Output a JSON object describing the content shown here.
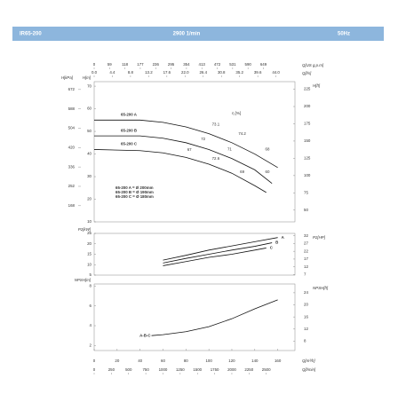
{
  "header": {
    "model": "IR65-200",
    "speed": "2900 1/min",
    "frequency": "50Hz"
  },
  "chart_data": [
    {
      "type": "line",
      "xlim": [
        0,
        175
      ],
      "top_axes": [
        {
          "label": "Q[US g.p.m]",
          "lim": [
            0,
            770
          ],
          "ticks": [
            0,
            59,
            118,
            177,
            236,
            295,
            354,
            413,
            472,
            531,
            590,
            649
          ]
        },
        {
          "label": "Q[l/s]",
          "lim": [
            0,
            48.6
          ],
          "ticks": [
            {
              "value": 0,
              "label": "0.0"
            },
            4.4,
            8.8,
            13.2,
            17.6,
            {
              "value": 22,
              "label": "22.0"
            },
            26.4,
            30.8,
            35.2,
            39.6,
            {
              "value": 44,
              "label": "44.0"
            }
          ]
        }
      ],
      "ylabel": "H[m]",
      "ylim": [
        10,
        72
      ],
      "yticks": [
        10,
        20,
        30,
        40,
        50,
        60,
        70
      ],
      "y_left2": {
        "label": "H[kPa]",
        "lim": [
          98,
          706
        ],
        "ticks": [
          168,
          252,
          336,
          420,
          504,
          588,
          672
        ]
      },
      "y_right": {
        "label": "H[ft]",
        "lim": [
          33,
          236
        ],
        "ticks": [
          50,
          75,
          100,
          125,
          150,
          175,
          200,
          225
        ]
      },
      "series": [
        {
          "name": "65-200 A",
          "color": "#111111",
          "x": [
            0,
            40,
            60,
            80,
            100,
            120,
            140,
            160
          ],
          "values": [
            55,
            55,
            54,
            52,
            49,
            45,
            40,
            34
          ]
        },
        {
          "name": "65-200 B",
          "color": "#111111",
          "x": [
            0,
            40,
            60,
            80,
            100,
            120,
            140,
            155
          ],
          "values": [
            48,
            48,
            47,
            45,
            42,
            38,
            33,
            27
          ]
        },
        {
          "name": "65-200 C",
          "color": "#111111",
          "x": [
            0,
            40,
            60,
            80,
            100,
            120,
            140,
            150
          ],
          "values": [
            42,
            41.5,
            40.5,
            38.5,
            35.5,
            31.5,
            26,
            23
          ]
        }
      ],
      "annotations": [
        {
          "text": "η [%]",
          "x": 124,
          "y": 58
        },
        {
          "text": "73.1",
          "x": 106,
          "y": 53
        },
        {
          "text": "74.2",
          "x": 129,
          "y": 49
        },
        {
          "text": "72",
          "x": 95,
          "y": 46.5
        },
        {
          "text": "71",
          "x": 118,
          "y": 42
        },
        {
          "text": "68",
          "x": 151,
          "y": 42
        },
        {
          "text": "67",
          "x": 83,
          "y": 41.8
        },
        {
          "text": "72.6",
          "x": 106,
          "y": 38
        },
        {
          "text": "69",
          "x": 129,
          "y": 32
        },
        {
          "text": "60",
          "x": 151,
          "y": 32
        }
      ],
      "notes": [
        "65-200 A = Ø 200mm",
        "65-200 B = Ø 190mm",
        "65-200 C = Ø 180mm"
      ]
    },
    {
      "type": "line",
      "xlim": [
        0,
        175
      ],
      "ylabel": "P2[kW]",
      "ylim": [
        5,
        25
      ],
      "yticks": [
        5,
        10,
        15,
        20,
        25
      ],
      "y_right": {
        "label": "P2[HP]",
        "lim": [
          6.7,
          33.5
        ],
        "ticks": [
          7,
          12,
          17,
          22,
          27,
          32
        ]
      },
      "series": [
        {
          "name": "A",
          "color": "#111111",
          "x": [
            60,
            80,
            100,
            120,
            140,
            160
          ],
          "values": [
            12.2,
            14.5,
            17,
            19,
            21,
            23
          ]
        },
        {
          "name": "B",
          "color": "#111111",
          "x": [
            60,
            80,
            100,
            120,
            140,
            155
          ],
          "values": [
            10.8,
            13,
            15,
            17,
            18.8,
            20.5
          ]
        },
        {
          "name": "C",
          "color": "#111111",
          "x": [
            60,
            80,
            100,
            120,
            140,
            150
          ],
          "values": [
            9.5,
            11.5,
            13.5,
            15,
            17,
            18
          ]
        }
      ]
    },
    {
      "type": "line",
      "xlim": [
        0,
        175
      ],
      "xlabel": "Q[m³/h]",
      "xticks": [
        0,
        20,
        40,
        60,
        80,
        100,
        120,
        140,
        160
      ],
      "bottom_axes": [
        {
          "label": "Q[l/min]",
          "lim": [
            0,
            2917
          ],
          "ticks": [
            0,
            250,
            500,
            750,
            1000,
            1250,
            1500,
            1750,
            2000,
            2250,
            2500
          ]
        }
      ],
      "ylabel": "NPSH[m]",
      "ylim": [
        1.5,
        8.2
      ],
      "yticks": [
        2,
        4,
        6,
        8
      ],
      "y_right": {
        "label": "NPSH[ft]",
        "lim": [
          4.9,
          26.9
        ],
        "ticks": [
          8,
          12,
          16,
          20,
          24
        ]
      },
      "series": [
        {
          "name": "A-B-C",
          "color": "#111111",
          "x": [
            50,
            60,
            80,
            100,
            120,
            140,
            160
          ],
          "values": [
            3.0,
            3.1,
            3.4,
            3.9,
            4.7,
            5.7,
            6.6
          ]
        }
      ]
    }
  ]
}
